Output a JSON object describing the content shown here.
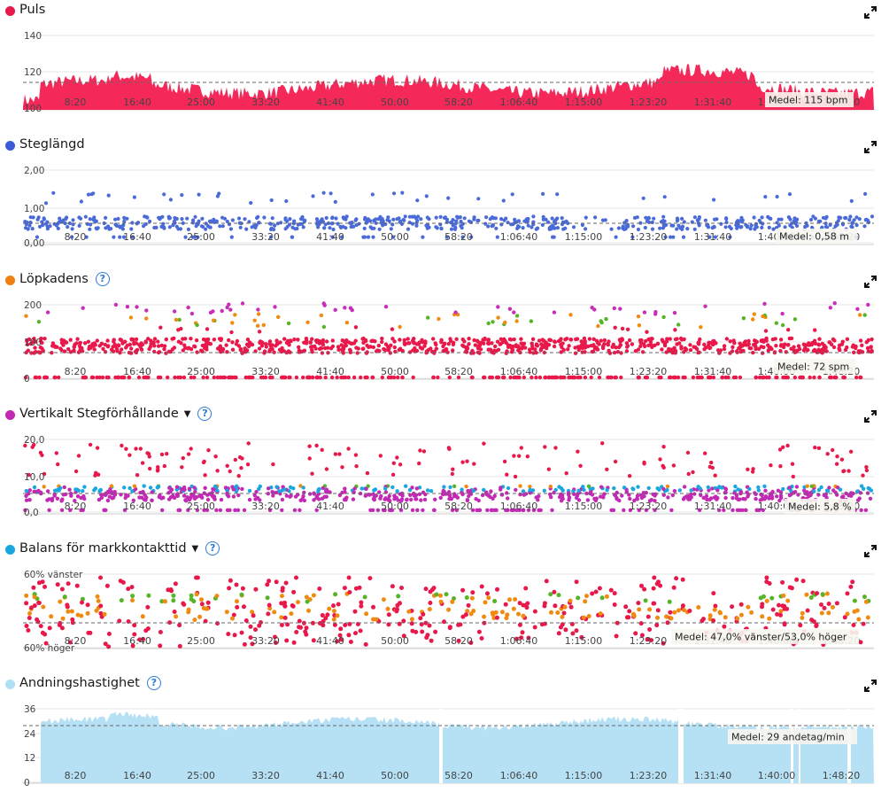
{
  "x_ticks": [
    "8:20",
    "16:40",
    "25:00",
    "33:20",
    "41:40",
    "50:00",
    "58:20",
    "1:06:40",
    "1:15:00",
    "1:23:20",
    "1:31:40",
    "1:40:00",
    "1:48:20"
  ],
  "expand_icon": "expand-arrows-icon",
  "help_icon": "question-circle-icon",
  "panels": [
    {
      "key": "puls",
      "title": "Puls",
      "dot_color": "#e8194a",
      "has_help": false,
      "has_dropdown": false,
      "y_ticks": [
        "140",
        "120",
        "100"
      ],
      "avg_label": "Medel: 115 bpm",
      "chart_data": {
        "type": "area",
        "series_color": "#f5285a",
        "ylim": [
          100,
          145
        ],
        "mean": 115,
        "xlim": [
          "0:00",
          "1:55:00"
        ]
      }
    },
    {
      "key": "steg",
      "title": "Steglängd",
      "dot_color": "#3b5bd9",
      "has_help": false,
      "has_dropdown": false,
      "y_ticks": [
        "2,00",
        "1,00",
        "0,00"
      ],
      "avg_label": "Medel: 0,58 m",
      "chart_data": {
        "type": "scatter",
        "series_color": "#4a6ad8",
        "ylim": [
          0,
          2
        ],
        "mean": 0.58
      }
    },
    {
      "key": "kadens",
      "title": "Löpkadens",
      "dot_color": "#f07e10",
      "has_help": true,
      "has_dropdown": false,
      "y_ticks": [
        "200",
        "100",
        "0"
      ],
      "avg_label": "Medel: 72 spm",
      "chart_data": {
        "type": "scatter",
        "colors": [
          "#e8194a",
          "#f08a10",
          "#55b428",
          "#c82fb8"
        ],
        "ylim": [
          0,
          200
        ],
        "mean": 72
      }
    },
    {
      "key": "vert",
      "title": "Vertikalt Stegförhållande",
      "dot_color": "#c22ab3",
      "has_help": true,
      "has_dropdown": true,
      "y_ticks": [
        "20,0",
        "10,0",
        "0,0"
      ],
      "avg_label": "Medel: 5,8 %",
      "chart_data": {
        "type": "scatter",
        "colors": [
          "#e8194a",
          "#f08a10",
          "#55b428",
          "#1aa7e0",
          "#c22ab3"
        ],
        "ylim": [
          0,
          20
        ],
        "mean": 5.8
      }
    },
    {
      "key": "balans",
      "title": "Balans för markkontakttid",
      "dot_color": "#1aa7e0",
      "has_help": true,
      "has_dropdown": true,
      "y_ticks": [
        "60% vänster",
        "60% höger"
      ],
      "avg_label": "Medel: 47,0% vänster/53,0% höger",
      "chart_data": {
        "type": "scatter",
        "colors": [
          "#e8194a",
          "#f08a10",
          "#55b428"
        ],
        "ylim": [
          "60% höger",
          "60% vänster"
        ],
        "mean": "47,0% vänster/53,0% höger"
      }
    },
    {
      "key": "andning",
      "title": "Andningshastighet",
      "dot_color": "#aedff5",
      "has_help": true,
      "has_dropdown": false,
      "y_ticks": [
        "36",
        "24",
        "12",
        "0"
      ],
      "avg_label": "Medel: 29 andetag/min",
      "chart_data": {
        "type": "area",
        "series_color": "#b6e1f5",
        "ylim": [
          0,
          36
        ],
        "mean": 29
      }
    }
  ]
}
